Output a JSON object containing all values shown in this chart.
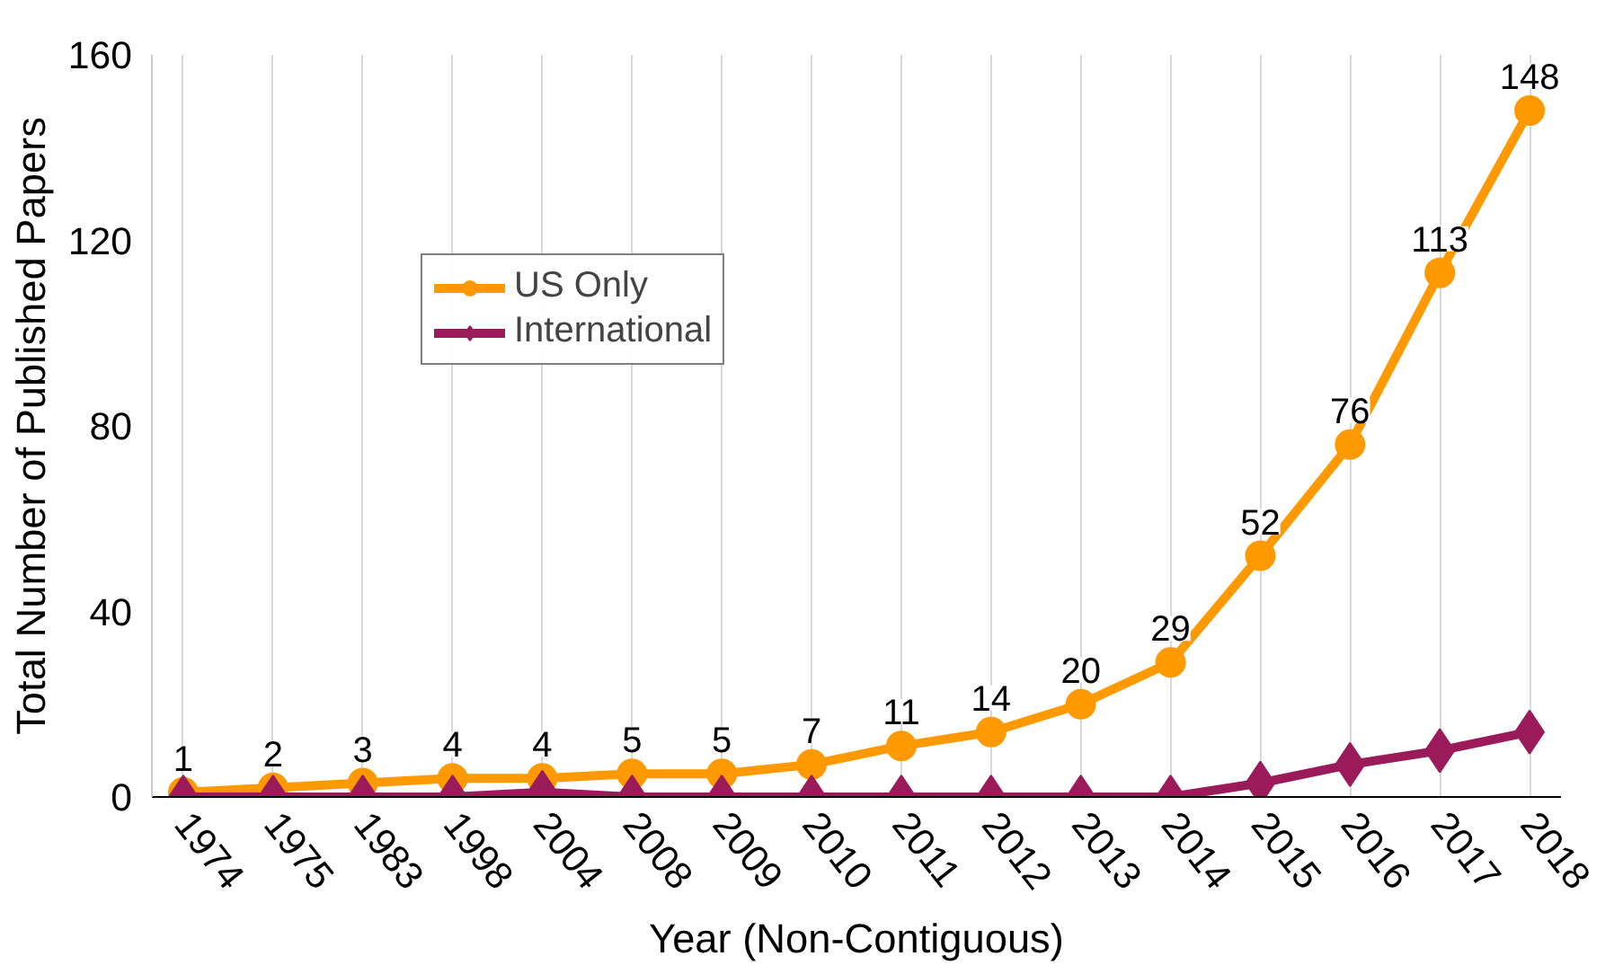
{
  "chart_data": {
    "type": "line",
    "xlabel": "Year (Non-Contiguous)",
    "ylabel": "Total Number of Published Papers",
    "categories": [
      "1974",
      "1975",
      "1983",
      "1998",
      "2004",
      "2008",
      "2009",
      "2010",
      "2011",
      "2012",
      "2013",
      "2014",
      "2015",
      "2016",
      "2017",
      "2018"
    ],
    "series": [
      {
        "name": "US Only",
        "color": "#ff9900",
        "marker": "circle",
        "values": [
          1,
          2,
          3,
          4,
          4,
          5,
          5,
          7,
          11,
          14,
          20,
          29,
          52,
          76,
          113,
          148
        ],
        "value_labels": [
          "1",
          "2",
          "3",
          "4",
          "4",
          "5",
          "5",
          "7",
          "11",
          "14",
          "20",
          "29",
          "52",
          "76",
          "113",
          "148"
        ]
      },
      {
        "name": "International",
        "color": "#9b1b5a",
        "marker": "diamond",
        "values": [
          0,
          0,
          0,
          0,
          1,
          0,
          0,
          0,
          0,
          0,
          0,
          0,
          3,
          7,
          10,
          14
        ]
      }
    ],
    "ylim": [
      0,
      160
    ],
    "yticks": [
      0,
      40,
      80,
      120,
      160
    ],
    "grid": "x",
    "legend": "top left",
    "line_style": "solid"
  }
}
